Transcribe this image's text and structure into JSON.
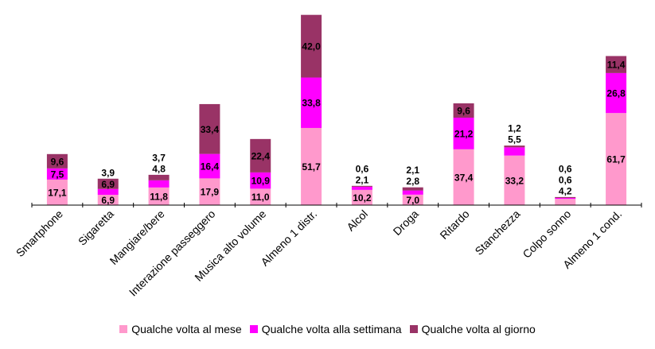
{
  "chart_data": {
    "type": "bar",
    "stacked": true,
    "categories": [
      "Smartphone",
      "Sigaretta",
      "Mangiare/bere",
      "Interazione passeggero",
      "Musica alto volume",
      "Almeno 1 distr.",
      "Alcol",
      "Droga",
      "Ritardo",
      "Stanchezza",
      "Colpo sonno",
      "Almeno 1 cond."
    ],
    "series": [
      {
        "name": "Qualche volta al mese",
        "color": "#FF99CC",
        "values": [
          17.1,
          6.9,
          11.8,
          17.9,
          11.0,
          51.7,
          10.2,
          7.0,
          37.4,
          33.2,
          4.2,
          61.7
        ],
        "labels": [
          "17,1",
          "6,9",
          "11,8",
          "17,9",
          "11,0",
          "51,7",
          "10,2",
          "7,0",
          "37,4",
          "33,2",
          "4,2",
          "61,7"
        ]
      },
      {
        "name": "Qualche volta alla settimana",
        "color": "#FF00FF",
        "values": [
          7.5,
          3.9,
          4.8,
          16.4,
          10.9,
          33.8,
          2.1,
          2.8,
          21.2,
          5.5,
          0.6,
          26.8
        ],
        "labels": [
          "7,5",
          "3,9",
          "4,8",
          "16,4",
          "10,9",
          "33,8",
          "2,1",
          "2,8",
          "21,2",
          "5,5",
          "0,6",
          "26,8"
        ]
      },
      {
        "name": "Qualche volta al giorno",
        "color": "#993366",
        "values": [
          9.6,
          6.9,
          3.7,
          33.4,
          22.4,
          42.0,
          0.6,
          2.1,
          9.6,
          1.2,
          0.6,
          11.4
        ],
        "labels": [
          "9,6",
          "6,9",
          "3,7",
          "33,4",
          "22,4",
          "42,0",
          "0,6",
          "2,1",
          "9,6",
          "1,2",
          "0,6",
          "11,4"
        ]
      }
    ],
    "title": "",
    "xlabel": "",
    "ylabel": "",
    "ylim": [
      0,
      130
    ],
    "grid": false,
    "legend_position": "bottom"
  }
}
